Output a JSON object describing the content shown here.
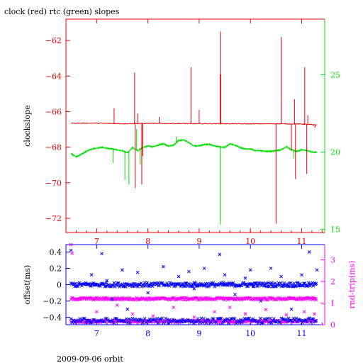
{
  "title": "clock (red) rtc (green) slopes",
  "footer": "2009-09-06 orbit",
  "colors": {
    "axes": "#000000",
    "clock": "#e00000",
    "rtc": "#00e000",
    "offset": "#0000ff",
    "roundtrip": "#ff00ff"
  },
  "chart_data": [
    {
      "type": "line",
      "title": "clock (red) rtc (green) slopes",
      "ylabel": "clockslope",
      "y2label": "",
      "xlim": [
        6.4,
        11.45
      ],
      "ylim": [
        -72.8,
        -60.8
      ],
      "y2lim": [
        14.8,
        28.6
      ],
      "x_ticks": [
        7,
        8,
        9,
        10,
        11
      ],
      "y_ticks": [
        -72,
        -70,
        -68,
        -66,
        -64,
        -62
      ],
      "y2_ticks": [
        15,
        20,
        25
      ],
      "grid": false,
      "series": [
        {
          "name": "clock",
          "axis": "left",
          "color": "#e00000",
          "baseline": [
            [
              6.5,
              -66.65
            ],
            [
              7.0,
              -66.65
            ],
            [
              7.5,
              -66.68
            ],
            [
              8.0,
              -66.66
            ],
            [
              8.5,
              -66.67
            ],
            [
              9.0,
              -66.68
            ],
            [
              9.5,
              -66.68
            ],
            [
              10.0,
              -66.69
            ],
            [
              10.5,
              -66.68
            ],
            [
              11.0,
              -66.7
            ],
            [
              11.3,
              -66.75
            ]
          ],
          "spikes": [
            [
              7.34,
              -65.8
            ],
            [
              7.74,
              -63.8
            ],
            [
              7.75,
              -70.3
            ],
            [
              7.8,
              -66.1
            ],
            [
              7.88,
              -70.1
            ],
            [
              7.9,
              -68.5
            ],
            [
              8.22,
              -66.3
            ],
            [
              8.84,
              -63.5
            ],
            [
              9.0,
              -65.9
            ],
            [
              9.41,
              -61.5
            ],
            [
              9.42,
              -63.9
            ],
            [
              10.5,
              -72.3
            ],
            [
              10.6,
              -61.8
            ],
            [
              10.8,
              -68.2
            ],
            [
              10.86,
              -65.3
            ],
            [
              10.88,
              -69.8
            ],
            [
              11.06,
              -63.5
            ],
            [
              11.1,
              -69.5
            ],
            [
              11.12,
              -66.2
            ],
            [
              11.26,
              -66.9
            ]
          ]
        },
        {
          "name": "rtc",
          "axis": "right",
          "color": "#00e000",
          "baseline": [
            [
              6.5,
              19.9
            ],
            [
              6.6,
              19.7
            ],
            [
              6.7,
              19.85
            ],
            [
              6.8,
              20.05
            ],
            [
              6.9,
              20.2
            ],
            [
              7.0,
              20.25
            ],
            [
              7.1,
              20.3
            ],
            [
              7.2,
              20.25
            ],
            [
              7.3,
              20.2
            ],
            [
              7.4,
              20.15
            ],
            [
              7.5,
              20.1
            ],
            [
              7.6,
              19.95
            ],
            [
              7.7,
              20.3
            ],
            [
              7.8,
              20.1
            ],
            [
              7.9,
              20.3
            ],
            [
              8.0,
              20.4
            ],
            [
              8.1,
              20.35
            ],
            [
              8.2,
              20.45
            ],
            [
              8.3,
              20.55
            ],
            [
              8.4,
              20.4
            ],
            [
              8.5,
              20.45
            ],
            [
              8.6,
              20.75
            ],
            [
              8.7,
              20.8
            ],
            [
              8.8,
              20.6
            ],
            [
              8.9,
              20.4
            ],
            [
              9.0,
              20.4
            ],
            [
              9.1,
              20.5
            ],
            [
              9.2,
              20.5
            ],
            [
              9.3,
              20.4
            ],
            [
              9.4,
              20.35
            ],
            [
              9.5,
              20.3
            ],
            [
              9.6,
              20.55
            ],
            [
              9.7,
              20.45
            ],
            [
              9.8,
              20.3
            ],
            [
              9.9,
              20.2
            ],
            [
              10.0,
              20.2
            ],
            [
              10.1,
              20.1
            ],
            [
              10.2,
              20.1
            ],
            [
              10.3,
              20.05
            ],
            [
              10.4,
              20.05
            ],
            [
              10.5,
              20.1
            ],
            [
              10.6,
              20.15
            ],
            [
              10.7,
              20.35
            ],
            [
              10.8,
              20.15
            ],
            [
              10.9,
              20.05
            ],
            [
              11.0,
              20.15
            ],
            [
              11.1,
              20.1
            ],
            [
              11.2,
              20.0
            ],
            [
              11.3,
              20.0
            ]
          ],
          "spikes": [
            [
              7.32,
              19.3
            ],
            [
              7.55,
              18.2
            ],
            [
              7.63,
              17.9
            ],
            [
              7.78,
              21.5
            ],
            [
              7.85,
              19.2
            ],
            [
              8.55,
              21.0
            ],
            [
              9.41,
              15.3
            ],
            [
              10.85,
              19.6
            ]
          ]
        }
      ]
    },
    {
      "type": "scatter",
      "ylabel": "offset(ms)",
      "y2label": "rnd-trip(ms)",
      "xlim": [
        6.4,
        11.45
      ],
      "ylim": [
        -0.49,
        0.49
      ],
      "y2lim": [
        0,
        3.7
      ],
      "x_ticks": [
        7,
        8,
        9,
        10,
        11
      ],
      "y_ticks": [
        -0.4,
        -0.2,
        0,
        0.2,
        0.4
      ],
      "y2_ticks": [
        0,
        1,
        2,
        3
      ],
      "grid": false,
      "series": [
        {
          "name": "offset",
          "axis": "left",
          "color": "#0000ff",
          "band": {
            "x_range": [
              6.5,
              11.3
            ],
            "center": 0.0,
            "spread": 0.025
          },
          "lower_band": {
            "x_range": [
              6.5,
              11.3
            ],
            "center": -0.44,
            "spread": 0.03
          },
          "outliers": [
            [
              6.5,
              0.42
            ],
            [
              6.9,
              0.12
            ],
            [
              7.1,
              0.38
            ],
            [
              7.3,
              -0.18
            ],
            [
              7.5,
              0.18
            ],
            [
              7.6,
              -0.3
            ],
            [
              7.8,
              0.15
            ],
            [
              8.0,
              -0.1
            ],
            [
              8.3,
              0.22
            ],
            [
              8.6,
              0.1
            ],
            [
              8.9,
              -0.05
            ],
            [
              9.1,
              0.2
            ],
            [
              9.4,
              0.37
            ],
            [
              9.5,
              0.12
            ],
            [
              9.7,
              -0.12
            ],
            [
              10.0,
              0.18
            ],
            [
              10.2,
              -0.2
            ],
            [
              10.4,
              0.2
            ],
            [
              10.6,
              0.1
            ],
            [
              10.8,
              -0.3
            ],
            [
              11.0,
              0.12
            ],
            [
              11.15,
              0.4
            ],
            [
              11.3,
              0.18
            ],
            [
              7.2,
              0.05
            ],
            [
              8.8,
              0.16
            ],
            [
              9.9,
              0.08
            ]
          ]
        },
        {
          "name": "rnd-trip",
          "axis": "right",
          "color": "#ff00ff",
          "band": {
            "x_range": [
              6.5,
              11.3
            ],
            "center": 1.2,
            "spread": 0.05
          },
          "lower_band": {
            "x_range": [
              6.5,
              11.3
            ],
            "center": 0.15,
            "spread": 0.05
          },
          "outliers": [
            [
              6.5,
              3.7
            ],
            [
              6.52,
              3.3
            ],
            [
              7.0,
              0.6
            ],
            [
              7.4,
              0.9
            ],
            [
              7.7,
              0.5
            ],
            [
              8.1,
              0.4
            ],
            [
              8.5,
              0.8
            ],
            [
              8.9,
              0.35
            ],
            [
              9.3,
              0.6
            ],
            [
              9.6,
              0.8
            ],
            [
              9.9,
              0.5
            ],
            [
              10.3,
              0.7
            ],
            [
              10.7,
              0.45
            ],
            [
              11.05,
              0.6
            ],
            [
              11.25,
              0.5
            ]
          ]
        }
      ]
    }
  ]
}
